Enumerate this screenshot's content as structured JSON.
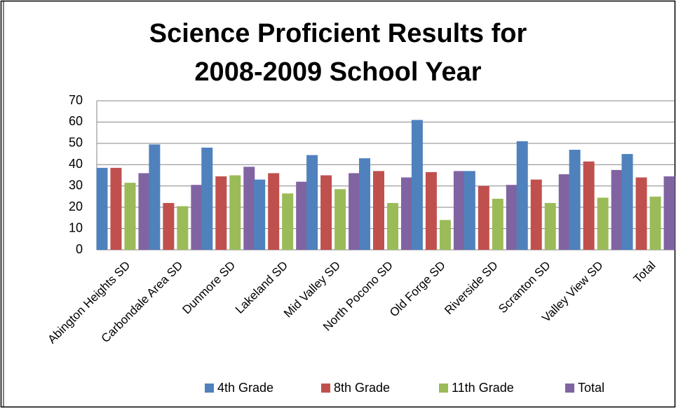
{
  "chart_data": {
    "type": "bar",
    "title": [
      "Science Proficient Results for",
      "2008-2009 School Year"
    ],
    "categories": [
      "Abington Heights SD",
      "Carbondale Area SD",
      "Dunmore SD",
      "Lakeland SD",
      "Mid Valley SD",
      "North Pocono SD",
      "Old Forge SD",
      "Riverside SD",
      "Scranton SD",
      "Valley View SD",
      "Total"
    ],
    "series": [
      {
        "name": "4th Grade",
        "color": "#4f81bd",
        "values": [
          38.5,
          49.5,
          48,
          33,
          44.5,
          43,
          61,
          37,
          51,
          47,
          45
        ]
      },
      {
        "name": "8th Grade",
        "color": "#c0504d",
        "values": [
          38.5,
          22,
          34.5,
          36,
          35,
          37,
          36.5,
          30,
          33,
          41.5,
          34
        ]
      },
      {
        "name": "11th Grade",
        "color": "#9bbb59",
        "values": [
          31.5,
          20.5,
          35,
          26.5,
          28.5,
          22,
          14,
          24,
          22,
          24.5,
          25
        ]
      },
      {
        "name": "Total",
        "color": "#8064a2",
        "values": [
          36,
          30.5,
          39,
          32,
          36,
          34,
          37,
          30.5,
          35.5,
          37.5,
          34.5
        ]
      }
    ],
    "ylim": [
      0,
      70
    ],
    "yticks": [
      0,
      10,
      20,
      30,
      40,
      50,
      60,
      70
    ],
    "grid": true,
    "legend": "bottom"
  }
}
